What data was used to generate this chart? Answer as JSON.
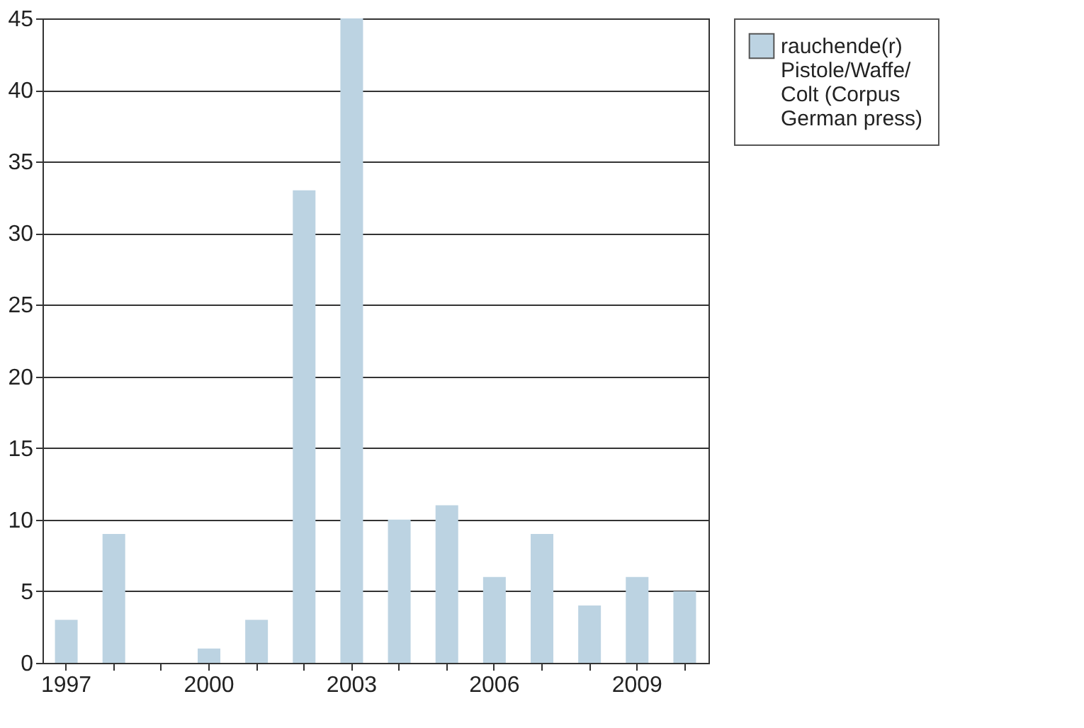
{
  "chart_data": {
    "type": "bar",
    "categories": [
      "1997",
      null,
      null,
      "2000",
      null,
      null,
      "2003",
      null,
      null,
      "2006",
      null,
      null,
      "2009",
      null
    ],
    "series": [
      {
        "name": "rauchende(r) Pistole/Waffe/ Colt (Corpus German press)",
        "color": "#bcd3e2",
        "values": [
          3,
          9,
          0,
          1,
          3,
          33,
          45,
          10,
          11,
          6,
          9,
          4,
          6,
          5
        ]
      }
    ],
    "ylim": [
      0,
      45
    ],
    "yticks": [
      0,
      5,
      10,
      15,
      20,
      25,
      30,
      35,
      40,
      45
    ],
    "grid": "y",
    "legend": "right"
  }
}
